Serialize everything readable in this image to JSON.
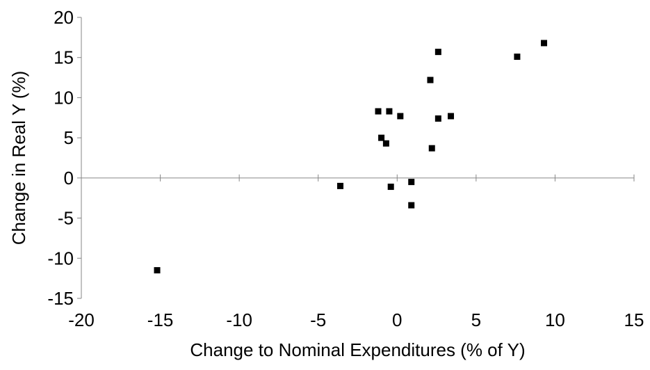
{
  "chart_data": {
    "type": "scatter",
    "title": "",
    "xlabel": "Change to Nominal Expenditures (% of Y)",
    "ylabel": "Change in Real Y (%)",
    "xlim": [
      -20,
      15
    ],
    "ylim": [
      -15,
      20
    ],
    "x_ticks": [
      -20,
      -15,
      -10,
      -5,
      0,
      5,
      10,
      15
    ],
    "y_ticks": [
      -15,
      -10,
      -5,
      0,
      5,
      10,
      15,
      20
    ],
    "x_tick_labels": [
      "-20",
      "-15",
      "-10",
      "-5",
      "0",
      "5",
      "10",
      "15"
    ],
    "y_tick_labels": [
      "-15",
      "-10",
      "-5",
      "0",
      "5",
      "10",
      "15",
      "20"
    ],
    "grid": false,
    "legend": "none",
    "marker": "square",
    "marker_color": "#000000",
    "series": [
      {
        "x": [
          -15.2,
          -3.6,
          -1.2,
          -1.0,
          -0.7,
          -0.5,
          -0.4,
          0.2,
          0.9,
          0.9,
          2.1,
          2.2,
          2.6,
          2.6,
          3.4,
          7.6,
          9.3
        ],
        "y": [
          -11.5,
          -1.0,
          8.3,
          5.0,
          4.3,
          8.3,
          -1.1,
          7.7,
          -0.5,
          -3.4,
          12.2,
          3.7,
          15.7,
          7.4,
          7.7,
          15.1,
          16.8
        ]
      }
    ]
  }
}
